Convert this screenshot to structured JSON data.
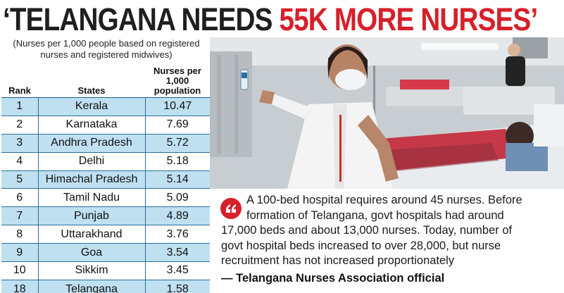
{
  "headline": {
    "part1": "‘TELANGANA NEEDS ",
    "part2": "55K MORE NURSES’",
    "accent_color": "#d6202a"
  },
  "subnote": "(Nurses per 1,000 people based on registered nurses and registered midwives)",
  "table": {
    "headers": [
      "Rank",
      "States",
      "Nurses per 1,000 population"
    ],
    "rows": [
      {
        "rank": "1",
        "state": "Kerala",
        "value": "10.47"
      },
      {
        "rank": "2",
        "state": "Karnataka",
        "value": "7.69"
      },
      {
        "rank": "3",
        "state": "Andhra Pradesh",
        "value": "5.72"
      },
      {
        "rank": "4",
        "state": "Delhi",
        "value": "5.18"
      },
      {
        "rank": "5",
        "state": "Himachal Pradesh",
        "value": "5.14"
      },
      {
        "rank": "6",
        "state": "Tamil Nadu",
        "value": "5.09"
      },
      {
        "rank": "7",
        "state": "Punjab",
        "value": "4.89"
      },
      {
        "rank": "8",
        "state": "Uttarakhand",
        "value": "3.76"
      },
      {
        "rank": "9",
        "state": "Goa",
        "value": "3.54"
      },
      {
        "rank": "10",
        "state": "Sikkim",
        "value": "3.45"
      },
      {
        "rank": "18",
        "state": "Telangana",
        "value": "1.58"
      }
    ],
    "highlight_color": "#bfe0f1"
  },
  "quote": {
    "icon": "quote-mark-icon",
    "lines": [
      "A 100-bed hospital requires around 45 nurses. Before",
      "formation of Telangana, govt hospitals had around",
      "17,000 beds and about 13,000 nurses. Today, number of",
      "govt hospital beds increased to over 28,000, but nurse",
      "recruitment has not increased proportionately"
    ],
    "attribution": "— Telangana Nurses Association official"
  }
}
